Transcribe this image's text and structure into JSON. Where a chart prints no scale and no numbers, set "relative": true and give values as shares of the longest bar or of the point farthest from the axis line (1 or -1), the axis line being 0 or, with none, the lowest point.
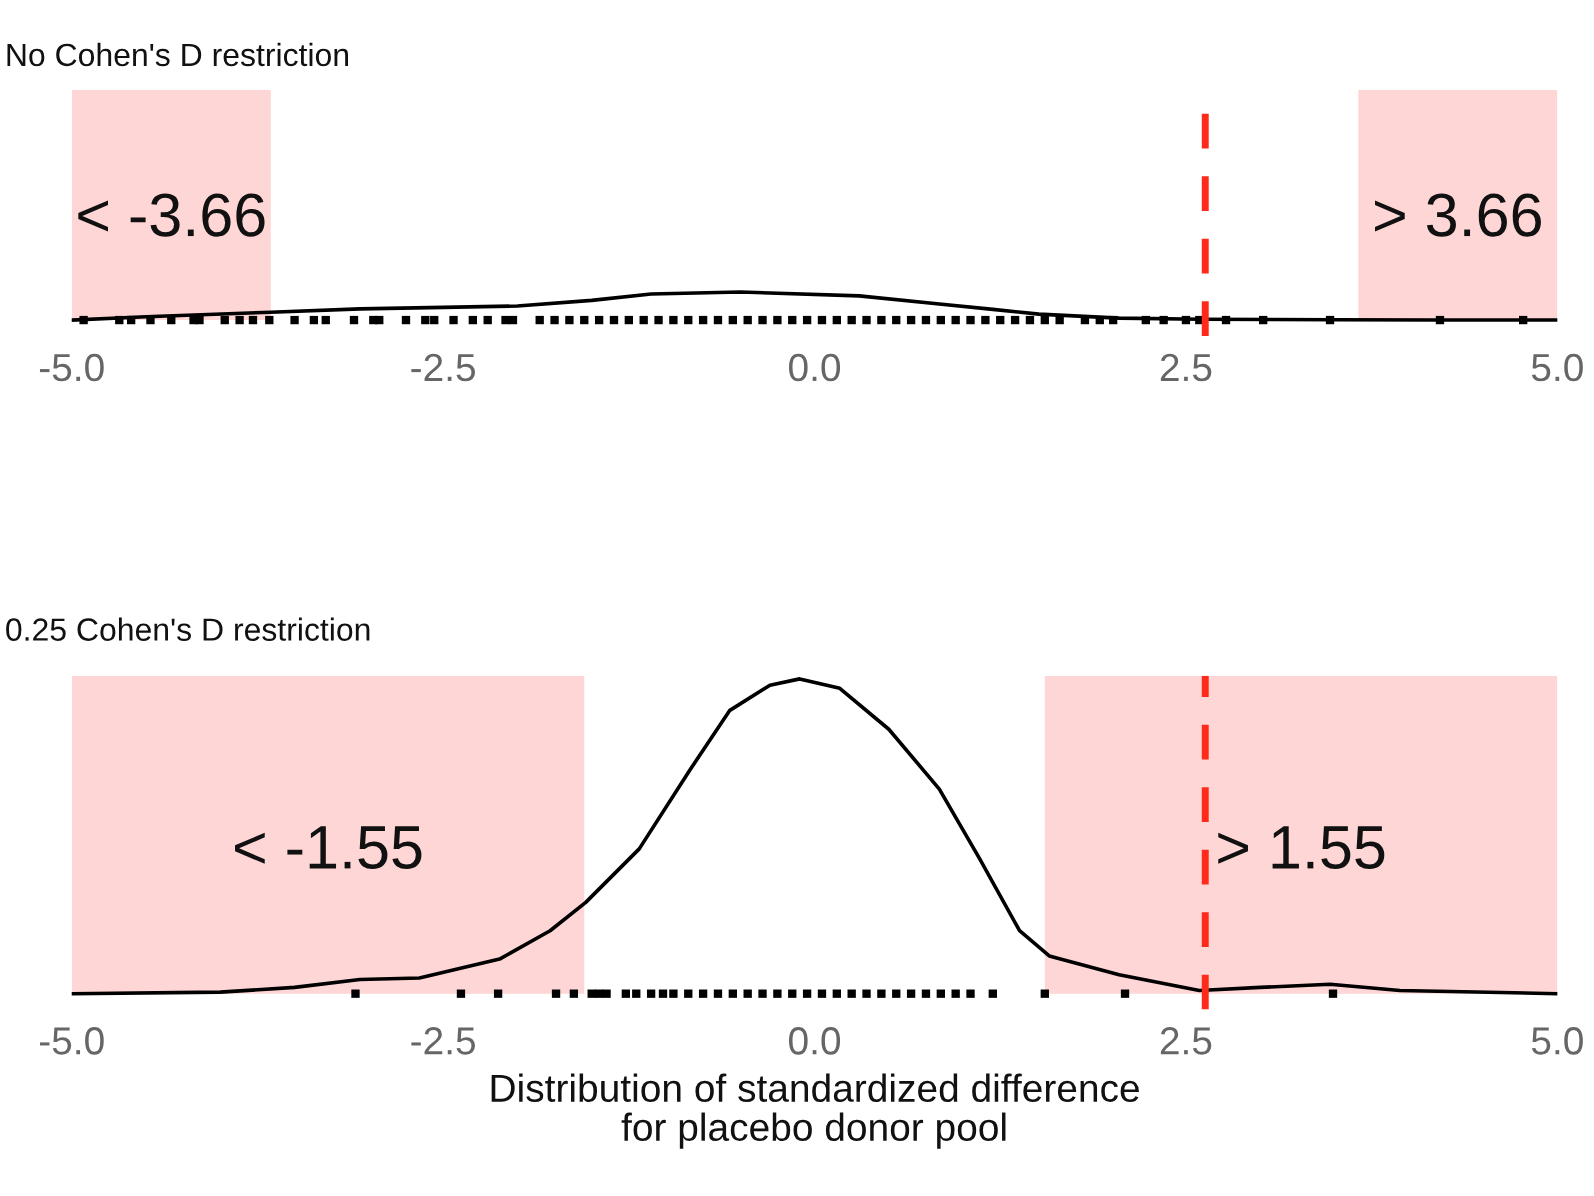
{
  "chart_data": [
    {
      "type": "line",
      "title": "No Cohen's D restriction",
      "relative": true,
      "tick_labels": "x",
      "grid": false,
      "xlim": [
        -5,
        5
      ],
      "xticks": [
        {
          "value": -5,
          "label": "-5.0"
        },
        {
          "value": -2.5,
          "label": "-2.5"
        },
        {
          "value": 0,
          "label": "0.0"
        },
        {
          "value": 2.5,
          "label": "2.5"
        },
        {
          "value": 5,
          "label": "5.0"
        }
      ],
      "series": [
        {
          "type": "line",
          "color": "#000000",
          "x": [
            -5,
            -4.5,
            -3.66,
            -3.06,
            -2.5,
            -2.0,
            -1.5,
            -1.1,
            -0.5,
            0.3,
            0.84,
            1.2,
            1.51,
            2.05,
            2.6,
            3.5,
            4.2,
            5
          ],
          "values": [
            0,
            0.12,
            0.28,
            0.4,
            0.45,
            0.5,
            0.7,
            0.93,
            1,
            0.86,
            0.57,
            0.38,
            0.21,
            0.07,
            0.03,
            0.01,
            0,
            0
          ]
        },
        {
          "type": "scatter",
          "marker": "square",
          "color": "#000000",
          "x": [
            -4.92,
            -4.68,
            -4.6,
            -4.47,
            -4.33,
            -4.18,
            -4.14,
            -3.97,
            -3.87,
            -3.78,
            -3.67,
            -3.5,
            -3.37,
            -3.29,
            -3.1,
            -2.97,
            -2.93,
            -2.75,
            -2.62,
            -2.56,
            -2.43,
            -2.3,
            -2.2,
            -2.08,
            -2.03,
            -1.85,
            -1.75,
            -1.65,
            -1.55,
            -1.45,
            -1.35,
            -1.25,
            -1.15,
            -1.05,
            -0.95,
            -0.85,
            -0.75,
            -0.65,
            -0.55,
            -0.45,
            -0.35,
            -0.25,
            -0.15,
            -0.05,
            0.05,
            0.15,
            0.25,
            0.35,
            0.45,
            0.55,
            0.65,
            0.75,
            0.85,
            0.95,
            1.05,
            1.15,
            1.25,
            1.35,
            1.45,
            1.55,
            1.65,
            1.82,
            1.92,
            2.01,
            2.23,
            2.35,
            2.5,
            2.59,
            2.77,
            3.02,
            3.47,
            4.21,
            4.77
          ],
          "values": [
            0,
            0,
            0,
            0,
            0,
            0,
            0,
            0,
            0,
            0,
            0,
            0,
            0,
            0,
            0,
            0,
            0,
            0,
            0,
            0,
            0,
            0,
            0,
            0,
            0,
            0,
            0,
            0,
            0,
            0,
            0,
            0,
            0,
            0,
            0,
            0,
            0,
            0,
            0,
            0,
            0,
            0,
            0,
            0,
            0,
            0,
            0,
            0,
            0,
            0,
            0,
            0,
            0,
            0,
            0,
            0,
            0,
            0,
            0,
            0,
            0,
            0,
            0,
            0,
            0,
            0,
            0,
            0,
            0,
            0,
            0,
            0,
            0
          ]
        }
      ],
      "bands": [
        {
          "axis": "x",
          "from": -5,
          "to": -3.66,
          "label": "< -3.66",
          "color": "#ffd6d6"
        },
        {
          "axis": "x",
          "from": 3.66,
          "to": 5,
          "label": "> 3.66",
          "color": "#ffd6d6"
        }
      ],
      "ref_lines": [
        {
          "axis": "x",
          "value": 2.63,
          "color": "#ff2a1a",
          "line_style": "dashed"
        }
      ]
    },
    {
      "type": "line",
      "title": "0.25 Cohen's D restriction",
      "xlabel": "Distribution of standardized difference\nfor placebo donor pool",
      "relative": true,
      "tick_labels": "x",
      "grid": false,
      "xlim": [
        -5,
        5
      ],
      "xticks": [
        {
          "value": -5,
          "label": "-5.0"
        },
        {
          "value": -2.5,
          "label": "-2.5"
        },
        {
          "value": 0,
          "label": "0.0"
        },
        {
          "value": 2.5,
          "label": "2.5"
        },
        {
          "value": 5,
          "label": "5.0"
        }
      ],
      "series": [
        {
          "type": "line",
          "color": "#000000",
          "x": [
            -5,
            -4,
            -3.5,
            -3.06,
            -2.66,
            -2.12,
            -1.78,
            -1.54,
            -1.18,
            -0.84,
            -0.57,
            -0.3,
            -0.1,
            0.17,
            0.5,
            0.84,
            1.11,
            1.38,
            1.58,
            2.05,
            2.59,
            3.0,
            3.47,
            3.94,
            5
          ],
          "values": [
            0,
            0.005,
            0.02,
            0.045,
            0.05,
            0.11,
            0.2,
            0.29,
            0.46,
            0.71,
            0.9,
            0.98,
            1,
            0.97,
            0.84,
            0.65,
            0.43,
            0.2,
            0.12,
            0.06,
            0.01,
            0.02,
            0.03,
            0.01,
            0
          ]
        },
        {
          "type": "scatter",
          "marker": "square",
          "color": "#000000",
          "x": [
            -3.09,
            -2.38,
            -2.13,
            -1.74,
            -1.62,
            -1.5,
            -1.45,
            -1.4,
            -1.27,
            -1.2,
            -1.1,
            -1.02,
            -0.95,
            -0.85,
            -0.75,
            -0.65,
            -0.55,
            -0.45,
            -0.35,
            -0.25,
            -0.15,
            -0.05,
            0.05,
            0.15,
            0.25,
            0.35,
            0.45,
            0.55,
            0.65,
            0.75,
            0.85,
            0.95,
            1.05,
            1.2,
            1.55,
            2.09,
            3.49
          ],
          "values": [
            0,
            0,
            0,
            0,
            0,
            0,
            0,
            0,
            0,
            0,
            0,
            0,
            0,
            0,
            0,
            0,
            0,
            0,
            0,
            0,
            0,
            0,
            0,
            0,
            0,
            0,
            0,
            0,
            0,
            0,
            0,
            0,
            0,
            0,
            0,
            0,
            0
          ]
        }
      ],
      "bands": [
        {
          "axis": "x",
          "from": -5,
          "to": -1.55,
          "label": "< -1.55",
          "color": "#ffd6d6"
        },
        {
          "axis": "x",
          "from": 1.55,
          "to": 5,
          "label": "> 1.55",
          "color": "#ffd6d6"
        }
      ],
      "ref_lines": [
        {
          "axis": "x",
          "value": 2.63,
          "color": "#ff2a1a",
          "line_style": "dashed"
        }
      ]
    }
  ]
}
